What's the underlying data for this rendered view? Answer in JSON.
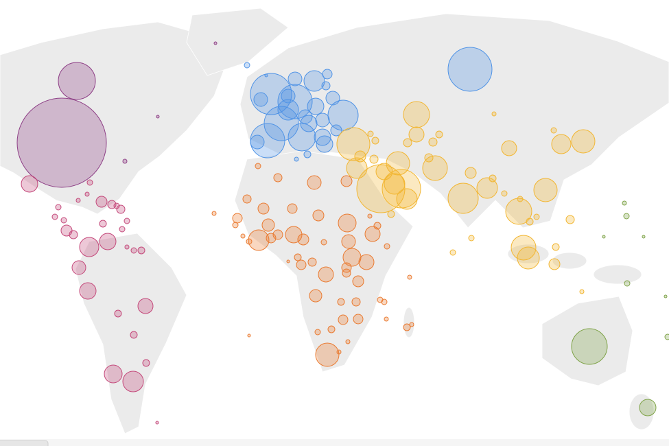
{
  "map": {
    "groups": [
      {
        "color": "#8e3f86"
      },
      {
        "color": "#c4487a"
      },
      {
        "color": "#4f93e6"
      },
      {
        "color": "#ea7a30"
      },
      {
        "color": "#f2b632"
      },
      {
        "color": "#7fa348"
      }
    ]
  }
}
